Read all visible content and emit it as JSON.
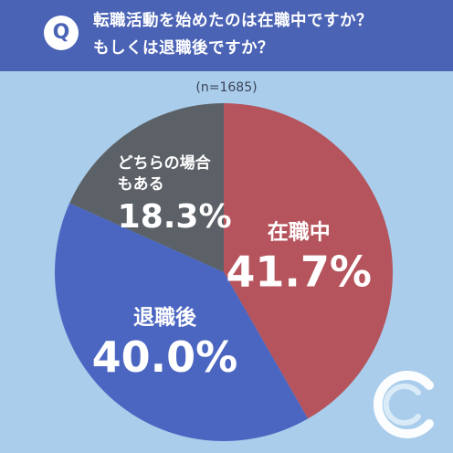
{
  "header": {
    "badge": "Q",
    "question_line1": "転職活動を始めたのは在職中ですか？",
    "question_line2": "もしくは退職後ですか？"
  },
  "sample_size": "(n=1685)",
  "colors": {
    "header_bg": "#4a63b5",
    "background": "#a9cdeb",
    "in_job": "#b5545c",
    "after_leaving": "#4b66c1",
    "depends": "#5b6167"
  },
  "chart_data": {
    "type": "pie",
    "title": "",
    "slices": [
      {
        "label": "在職中",
        "value": 41.7,
        "value_text": "41.7%",
        "color": "#b5545c"
      },
      {
        "label": "退職後",
        "value": 40.0,
        "value_text": "40.0%",
        "color": "#4b66c1"
      },
      {
        "label": "どちらの場合もある",
        "label_lines": [
          "どちらの場合",
          "もある"
        ],
        "value": 18.3,
        "value_text": "18.3%",
        "color": "#5b6167"
      }
    ]
  },
  "logo_icon": "brand-c-logo-icon"
}
